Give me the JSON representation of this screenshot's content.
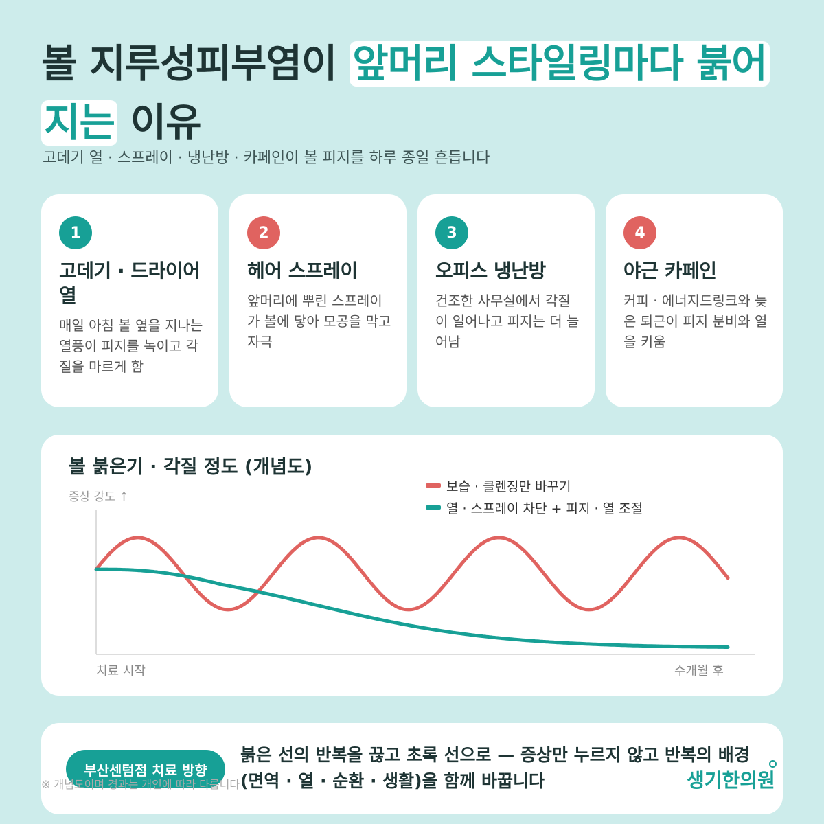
{
  "title": {
    "plain1": "볼 지루성피부염이 ",
    "highlight": "앞머리 스타일링마다 붉어지는",
    "plain2": " 이유"
  },
  "subtitle": "고데기 열 · 스프레이 · 냉난방 · 카페인이 볼 피지를 하루 종일 흔듭니다",
  "cards": [
    {
      "num": "1",
      "color": "#17a096",
      "title": "고데기 · 드라이어 열",
      "body": "매일 아침 볼 옆을 지나는 열풍이 피지를 녹이고 각질을 마르게 함"
    },
    {
      "num": "2",
      "color": "#e06360",
      "title": "헤어 스프레이",
      "body": "앞머리에 뿌린 스프레이가 볼에 닿아 모공을 막고 자극"
    },
    {
      "num": "3",
      "color": "#17a096",
      "title": "오피스 냉난방",
      "body": "건조한 사무실에서 각질이 일어나고 피지는 더 늘어남"
    },
    {
      "num": "4",
      "color": "#e06360",
      "title": "야근 카페인",
      "body": "커피 · 에너지드링크와 늦은 퇴근이 피지 분비와 열을 키움"
    }
  ],
  "chart": {
    "title": "볼 붉은기 · 각질 정도 (개념도)",
    "ylabel": "증상 강도 ↑",
    "x_start": "치료 시작",
    "x_end": "수개월 후"
  },
  "chart_data": {
    "type": "line",
    "title": "볼 붉은기 · 각질 정도 (개념도)",
    "ylabel": "증상 강도 ↑",
    "x_labels": [
      "치료 시작",
      "수개월 후"
    ],
    "x": [
      0,
      1
    ],
    "grid": false,
    "legend": "top-right",
    "series": [
      {
        "name": "보습 · 클렌징만 바꾸기",
        "color": "#e06360",
        "shape": "oscillating",
        "cycles": 3.5,
        "center": 0.56,
        "amplitude": 0.25,
        "end": 0.55
      },
      {
        "name": "열 · 스프레이 차단 + 피지 · 열 조절",
        "color": "#17a096",
        "shape": "decreasing",
        "start": 0.59,
        "end": 0.05
      }
    ]
  },
  "cta": {
    "badge": "부산센텀점 치료 방향",
    "text": "붉은 선의 반복을 끊고 초록 선으로 — 증상만 누르지 않고 반복의 배경(면역 · 열 · 순환 · 생활)을 함께 바꿉니다"
  },
  "note": "※ 개념도이며 경과는 개인에 따라 다릅니다",
  "brand": "생기한의원"
}
